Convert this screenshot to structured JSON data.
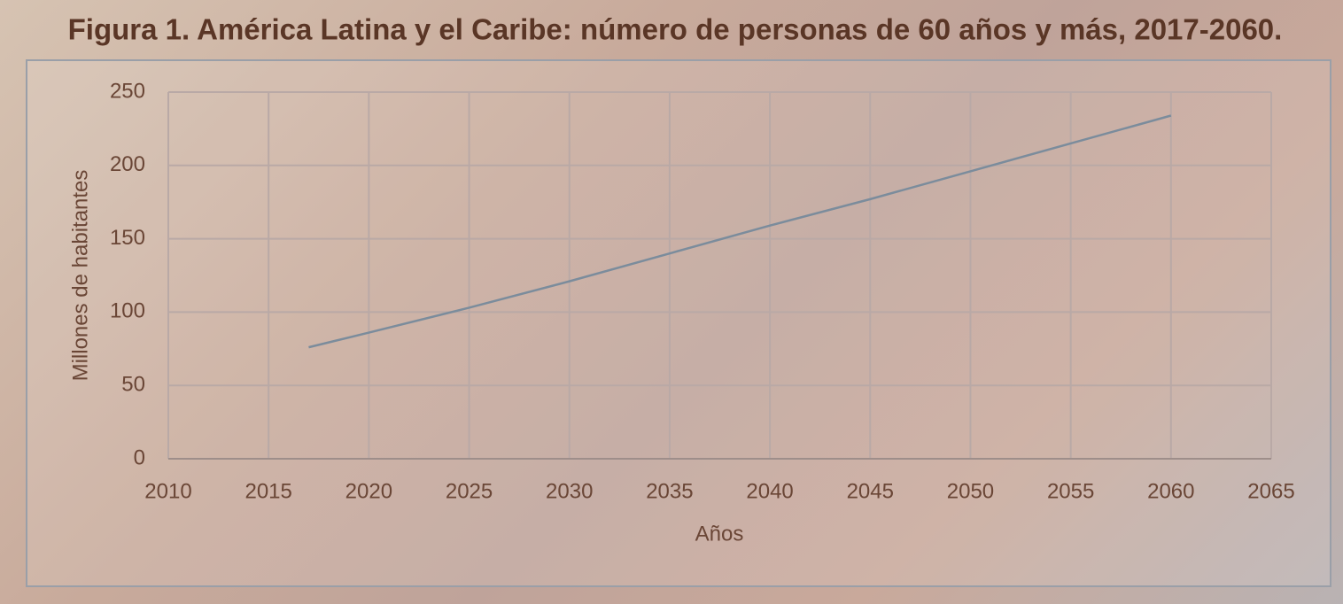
{
  "chart_data": {
    "type": "line",
    "title": "Figura 1.  América Latina y el Caribe: número de personas de 60 años y más, 2017-2060.",
    "x_label": "Años",
    "y_label": "Millones de habitantes",
    "x": [
      2017,
      2020,
      2025,
      2030,
      2035,
      2040,
      2045,
      2050,
      2055,
      2060
    ],
    "series": [
      {
        "name": "Personas de 60 años y más",
        "color": "#7b8c9c",
        "values": [
          76,
          86,
          103,
          121,
          140,
          159,
          177,
          196,
          215,
          234
        ]
      }
    ],
    "xlim": [
      2010,
      2065
    ],
    "xticks": [
      2010,
      2015,
      2020,
      2025,
      2030,
      2035,
      2040,
      2045,
      2050,
      2055,
      2060,
      2065
    ],
    "ylim": [
      0,
      250
    ],
    "yticks": [
      0,
      50,
      100,
      150,
      200,
      250
    ],
    "grid": true,
    "legend": false
  }
}
